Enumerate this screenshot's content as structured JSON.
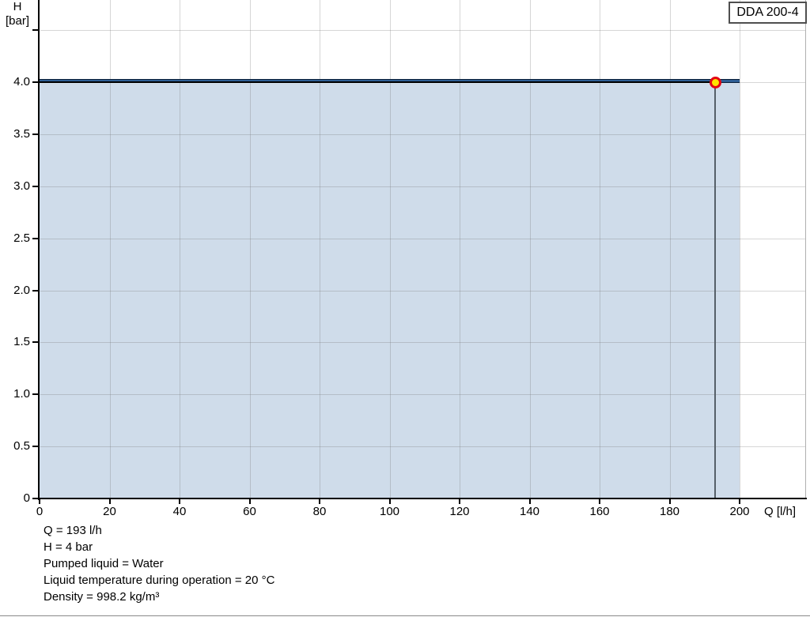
{
  "legend": {
    "label": "DDA 200-4"
  },
  "axes": {
    "y_title_line1": "H",
    "y_title_line2": "[bar]",
    "x_title": "Q [l/h]"
  },
  "chart_data": {
    "type": "area",
    "title": "",
    "xlabel": "Q [l/h]",
    "ylabel": "H [bar]",
    "xlim": [
      0,
      219
    ],
    "ylim": [
      0,
      4.79
    ],
    "grid": true,
    "legend_position": "top-right",
    "series": [
      {
        "name": "DDA 200-4",
        "x": [
          0,
          200
        ],
        "y": [
          4.0,
          4.0
        ],
        "fill_to_zero": true
      }
    ],
    "operating_point": {
      "q": 193,
      "h": 4.0
    },
    "x_ticks": [
      {
        "v": 0,
        "label": "0"
      },
      {
        "v": 20,
        "label": "20"
      },
      {
        "v": 40,
        "label": "40"
      },
      {
        "v": 60,
        "label": "60"
      },
      {
        "v": 80,
        "label": "80"
      },
      {
        "v": 100,
        "label": "100"
      },
      {
        "v": 120,
        "label": "120"
      },
      {
        "v": 140,
        "label": "140"
      },
      {
        "v": 160,
        "label": "160"
      },
      {
        "v": 180,
        "label": "180"
      },
      {
        "v": 200,
        "label": "200"
      }
    ],
    "y_ticks": [
      {
        "v": 0,
        "label": "0"
      },
      {
        "v": 0.5,
        "label": "0.5"
      },
      {
        "v": 1.0,
        "label": "1.0"
      },
      {
        "v": 1.5,
        "label": "1.5"
      },
      {
        "v": 2.0,
        "label": "2.0"
      },
      {
        "v": 2.5,
        "label": "2.5"
      },
      {
        "v": 3.0,
        "label": "3.0"
      },
      {
        "v": 3.5,
        "label": "3.5"
      },
      {
        "v": 4.0,
        "label": "4.0"
      },
      {
        "v": 4.5,
        "label": ""
      }
    ]
  },
  "info_lines": [
    "Q = 193 l/h",
    "H = 4 bar",
    "Pumped liquid = Water",
    "Liquid temperature during operation = 20 °C",
    "Density = 998.2 kg/m³"
  ],
  "colors": {
    "curve": "#2e5e94",
    "curve_edge": "#0b1f38",
    "fill": "#cfdcea",
    "grid": "rgba(120,120,120,0.30)",
    "crosshair_vertical": "#566069",
    "crosshair_horizontal": "#000000",
    "marker_fill": "#ffe500",
    "marker_ring": "#e30613",
    "axis": "#000000",
    "right_border": "#b0b0b0",
    "legend_border": "#4f4f4f",
    "bottom_rule": "#8a8a8a"
  }
}
